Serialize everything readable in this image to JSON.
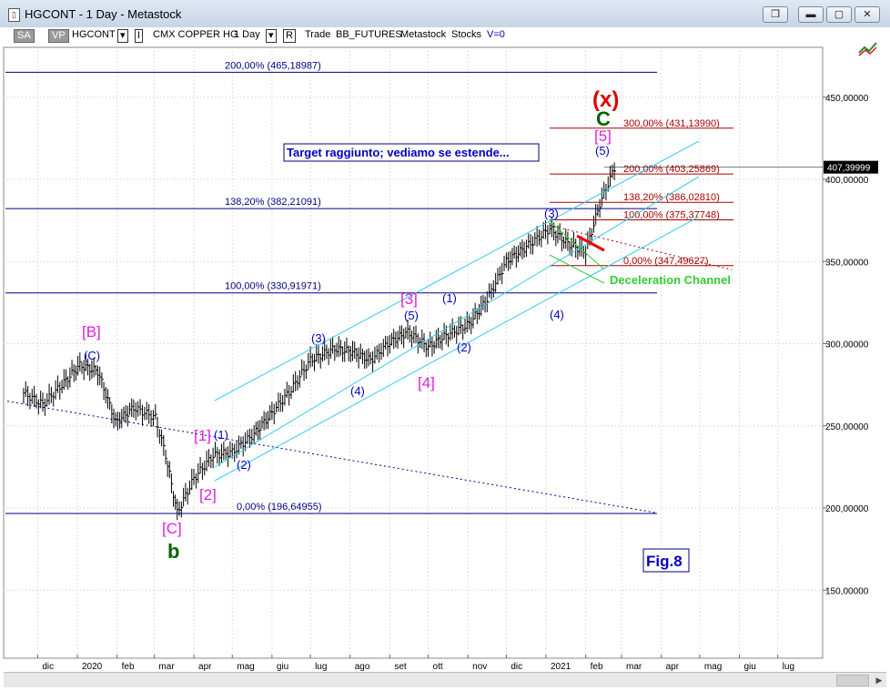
{
  "window": {
    "title": "HGCONT - 1 Day - Metastock",
    "icon": "document-icon",
    "buttons": [
      "restore-icon",
      "minimize-icon",
      "maximize-icon",
      "close-icon"
    ]
  },
  "toolbar": {
    "sa": "SA",
    "vp": "VP",
    "symbol": "HGCONT",
    "dropdown1": "▾",
    "instrument_marker": "I",
    "instrument": "CMX COPPER HG",
    "period": "1 Day",
    "dropdown2": "▾",
    "r_marker": "R",
    "trade": "Trade",
    "feed": "BB_FUTURES",
    "source": "Metastock",
    "stocks": "Stocks",
    "volume": "V=0"
  },
  "chart_data": {
    "type": "line",
    "symbol": "HGCONT",
    "ylim": [
      122,
      470
    ],
    "y_ticks": [
      150,
      200,
      250,
      300,
      350,
      400,
      450
    ],
    "y_tick_labels": [
      "150,00000",
      "200,00000",
      "250,00000",
      "300,00000",
      "350,00000",
      "400,00000",
      "450,00000"
    ],
    "x_tick_labels": [
      "dic",
      "2020",
      "feb",
      "mar",
      "apr",
      "mag",
      "giu",
      "lug",
      "ago",
      "set",
      "ott",
      "nov",
      "dic",
      "2021",
      "feb",
      "mar",
      "apr",
      "mag",
      "giu",
      "lug"
    ],
    "last_price_label": "407,39999",
    "series": [
      {
        "x": [
          "2019-11-20",
          "2019-12-05",
          "2019-12-20",
          "2020-01-03",
          "2020-01-17",
          "2020-01-31",
          "2020-02-14",
          "2020-03-02",
          "2020-03-10",
          "2020-03-19",
          "2020-04-01",
          "2020-04-16",
          "2020-05-01",
          "2020-05-18",
          "2020-06-01",
          "2020-06-16",
          "2020-07-01",
          "2020-07-20",
          "2020-08-03",
          "2020-08-17",
          "2020-09-01",
          "2020-09-15",
          "2020-10-01",
          "2020-10-15",
          "2020-11-02",
          "2020-11-16",
          "2020-12-01",
          "2020-12-15",
          "2021-01-04",
          "2021-01-18",
          "2021-02-01",
          "2021-02-12",
          "2021-02-25"
        ],
        "values": [
          270,
          263,
          275,
          287,
          283,
          252,
          261,
          255,
          232,
          197,
          218,
          232,
          234,
          245,
          258,
          272,
          290,
          297,
          295,
          290,
          301,
          307,
          298,
          305,
          312,
          327,
          350,
          358,
          370,
          361,
          356,
          385,
          410
        ]
      }
    ],
    "fib_levels_left": [
      {
        "label": "200,00% (465,18987)",
        "value": 465.19
      },
      {
        "label": "138,20% (382,21091)",
        "value": 382.21
      },
      {
        "label": "100,00% (330,91971)",
        "value": 330.92
      },
      {
        "label": "0,00% (196,64955)",
        "value": 196.65
      }
    ],
    "fib_levels_right": [
      {
        "label": "300,00% (431,13990)",
        "value": 431.14
      },
      {
        "label": "200,00% (403,25869)",
        "value": 403.26
      },
      {
        "label": "138,20% (386,02810)",
        "value": 386.03
      },
      {
        "label": "100,00% (375,37748)",
        "value": 375.38
      },
      {
        "label": "0,00% (347,49627)",
        "value": 347.5
      }
    ],
    "wave_labels_magenta": [
      "[B]",
      "[C]",
      "[1]",
      "[2]",
      "[3]",
      "[4]",
      "[5]"
    ],
    "wave_labels_blue": [
      "(C)",
      "(1)",
      "(2)",
      "(3)",
      "(4)",
      "(5)",
      "(1)",
      "(2)",
      "(3)",
      "(4)",
      "(5)"
    ],
    "wave_labels_green": [
      "b",
      "C"
    ],
    "wave_label_red": "(x)",
    "annotations": {
      "target_box": "Target raggiunto; vediamo se estende...",
      "deceleration": "Deceleration Channel",
      "figure": "Fig.8"
    },
    "colors": {
      "bars": "#000000",
      "fib_left": "#000080",
      "fib_right": "#aa0000",
      "channel": "#33ccee",
      "magenta": "#e020e0",
      "blue": "#0000c0",
      "green": "#006400",
      "red": "#dd0000",
      "deceleration": "#33cc33"
    }
  }
}
